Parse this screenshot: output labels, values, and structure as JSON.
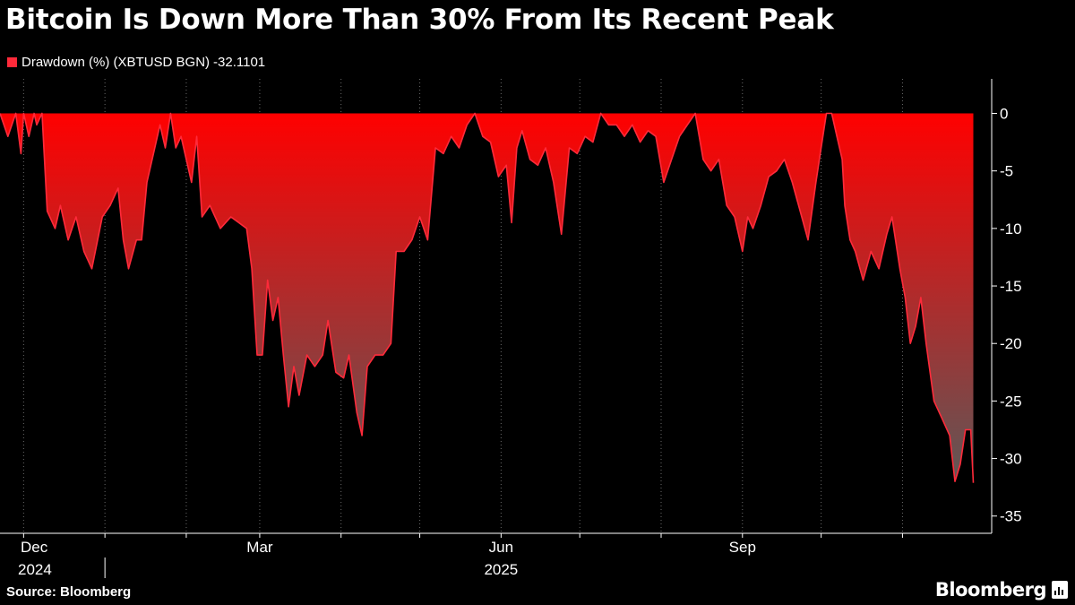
{
  "header": {
    "title": "Bitcoin Is Down More Than 30% From Its Recent Peak"
  },
  "footer": {
    "source": "Source: Bloomberg",
    "brand": "Bloomberg"
  },
  "colors": {
    "series": "#ff2a3a",
    "fill_top": "#ff0000",
    "fill_bottom": "#5a5a5a",
    "background": "#000000"
  },
  "chart_data": {
    "type": "area",
    "title": "Bitcoin Is Down More Than 30% From Its Recent Peak",
    "series": [
      {
        "name": "Drawdown (%) (XBTUSD BGN)",
        "last_value_label": "-32.1101",
        "points": [
          [
            "2024-11-22",
            0
          ],
          [
            "2024-11-25",
            -2
          ],
          [
            "2024-11-28",
            0
          ],
          [
            "2024-11-30",
            -3.5
          ],
          [
            "2024-12-01",
            0
          ],
          [
            "2024-12-03",
            -2
          ],
          [
            "2024-12-05",
            0
          ],
          [
            "2024-12-06",
            -1
          ],
          [
            "2024-12-08",
            0
          ],
          [
            "2024-12-10",
            -8.5
          ],
          [
            "2024-12-13",
            -10
          ],
          [
            "2024-12-15",
            -8
          ],
          [
            "2024-12-18",
            -11
          ],
          [
            "2024-12-21",
            -9
          ],
          [
            "2024-12-24",
            -12
          ],
          [
            "2024-12-27",
            -13.5
          ],
          [
            "2024-12-31",
            -9
          ],
          [
            "2025-01-03",
            -8
          ],
          [
            "2025-01-06",
            -6.5
          ],
          [
            "2025-01-08",
            -11
          ],
          [
            "2025-01-10",
            -13.5
          ],
          [
            "2025-01-13",
            -11
          ],
          [
            "2025-01-15",
            -11
          ],
          [
            "2025-01-17",
            -6
          ],
          [
            "2025-01-20",
            -3
          ],
          [
            "2025-01-22",
            -1
          ],
          [
            "2025-01-24",
            -3
          ],
          [
            "2025-01-26",
            0
          ],
          [
            "2025-01-28",
            -3
          ],
          [
            "2025-01-30",
            -2
          ],
          [
            "2025-02-01",
            -4
          ],
          [
            "2025-02-03",
            -6
          ],
          [
            "2025-02-05",
            -2
          ],
          [
            "2025-02-07",
            -9
          ],
          [
            "2025-02-10",
            -8
          ],
          [
            "2025-02-14",
            -10
          ],
          [
            "2025-02-18",
            -9
          ],
          [
            "2025-02-21",
            -9.5
          ],
          [
            "2025-02-24",
            -10
          ],
          [
            "2025-02-26",
            -13.5
          ],
          [
            "2025-02-28",
            -21
          ],
          [
            "2025-03-02",
            -21
          ],
          [
            "2025-03-04",
            -14.5
          ],
          [
            "2025-03-06",
            -18
          ],
          [
            "2025-03-08",
            -16
          ],
          [
            "2025-03-10",
            -21
          ],
          [
            "2025-03-12",
            -25.5
          ],
          [
            "2025-03-14",
            -22
          ],
          [
            "2025-03-16",
            -24.5
          ],
          [
            "2025-03-19",
            -21
          ],
          [
            "2025-03-22",
            -22
          ],
          [
            "2025-03-25",
            -21
          ],
          [
            "2025-03-27",
            -18
          ],
          [
            "2025-03-30",
            -22.5
          ],
          [
            "2025-04-02",
            -23
          ],
          [
            "2025-04-04",
            -21
          ],
          [
            "2025-04-07",
            -26
          ],
          [
            "2025-04-09",
            -28
          ],
          [
            "2025-04-11",
            -22
          ],
          [
            "2025-04-14",
            -21
          ],
          [
            "2025-04-17",
            -21
          ],
          [
            "2025-04-20",
            -20
          ],
          [
            "2025-04-22",
            -12
          ],
          [
            "2025-04-25",
            -12
          ],
          [
            "2025-04-28",
            -11
          ],
          [
            "2025-05-01",
            -9
          ],
          [
            "2025-05-04",
            -11
          ],
          [
            "2025-05-07",
            -3
          ],
          [
            "2025-05-10",
            -3.5
          ],
          [
            "2025-05-13",
            -2
          ],
          [
            "2025-05-16",
            -3
          ],
          [
            "2025-05-19",
            -1
          ],
          [
            "2025-05-22",
            0
          ],
          [
            "2025-05-25",
            -2
          ],
          [
            "2025-05-28",
            -2.5
          ],
          [
            "2025-05-31",
            -5.5
          ],
          [
            "2025-06-03",
            -4.5
          ],
          [
            "2025-06-05",
            -9.5
          ],
          [
            "2025-06-07",
            -3
          ],
          [
            "2025-06-09",
            -1.5
          ],
          [
            "2025-06-12",
            -4
          ],
          [
            "2025-06-15",
            -4.5
          ],
          [
            "2025-06-18",
            -3
          ],
          [
            "2025-06-21",
            -6
          ],
          [
            "2025-06-24",
            -10.5
          ],
          [
            "2025-06-27",
            -3
          ],
          [
            "2025-06-30",
            -3.5
          ],
          [
            "2025-07-03",
            -2
          ],
          [
            "2025-07-06",
            -2.5
          ],
          [
            "2025-07-09",
            0
          ],
          [
            "2025-07-12",
            -1
          ],
          [
            "2025-07-15",
            -1
          ],
          [
            "2025-07-18",
            -2
          ],
          [
            "2025-07-21",
            -1
          ],
          [
            "2025-07-24",
            -2.5
          ],
          [
            "2025-07-27",
            -1.5
          ],
          [
            "2025-07-30",
            -2
          ],
          [
            "2025-08-02",
            -6
          ],
          [
            "2025-08-05",
            -4
          ],
          [
            "2025-08-08",
            -2
          ],
          [
            "2025-08-11",
            -1
          ],
          [
            "2025-08-14",
            0
          ],
          [
            "2025-08-17",
            -4
          ],
          [
            "2025-08-20",
            -5
          ],
          [
            "2025-08-23",
            -4
          ],
          [
            "2025-08-26",
            -8
          ],
          [
            "2025-08-29",
            -9
          ],
          [
            "2025-09-01",
            -12
          ],
          [
            "2025-09-03",
            -9
          ],
          [
            "2025-09-05",
            -10
          ],
          [
            "2025-09-08",
            -8
          ],
          [
            "2025-09-11",
            -5.5
          ],
          [
            "2025-09-14",
            -5
          ],
          [
            "2025-09-17",
            -4
          ],
          [
            "2025-09-20",
            -6
          ],
          [
            "2025-09-23",
            -8.5
          ],
          [
            "2025-09-26",
            -11
          ],
          [
            "2025-09-29",
            -6
          ],
          [
            "2025-10-01",
            -3
          ],
          [
            "2025-10-03",
            0
          ],
          [
            "2025-10-05",
            0
          ],
          [
            "2025-10-07",
            -2
          ],
          [
            "2025-10-09",
            -4
          ],
          [
            "2025-10-10",
            -8
          ],
          [
            "2025-10-12",
            -11
          ],
          [
            "2025-10-14",
            -12
          ],
          [
            "2025-10-17",
            -14.5
          ],
          [
            "2025-10-20",
            -12
          ],
          [
            "2025-10-23",
            -13.5
          ],
          [
            "2025-10-26",
            -10.5
          ],
          [
            "2025-10-28",
            -9
          ],
          [
            "2025-10-31",
            -13.5
          ],
          [
            "2025-11-02",
            -16
          ],
          [
            "2025-11-04",
            -20
          ],
          [
            "2025-11-06",
            -18.5
          ],
          [
            "2025-11-08",
            -16
          ],
          [
            "2025-11-10",
            -20
          ],
          [
            "2025-11-13",
            -25
          ],
          [
            "2025-11-16",
            -26.5
          ],
          [
            "2025-11-19",
            -28
          ],
          [
            "2025-11-21",
            -32
          ],
          [
            "2025-11-23",
            -30.5
          ],
          [
            "2025-11-25",
            -27.5
          ],
          [
            "2025-11-27",
            -27.5
          ],
          [
            "2025-11-28",
            -32.1101
          ]
        ]
      }
    ],
    "xaxis": {
      "range": [
        "2024-11-22",
        "2025-12-05"
      ],
      "ticks": [
        {
          "date": "2024-12-01",
          "label": "Dec",
          "sublabel": "2024"
        },
        {
          "date": "2025-01-01",
          "label": ""
        },
        {
          "date": "2025-02-01",
          "label": ""
        },
        {
          "date": "2025-03-01",
          "label": "Mar"
        },
        {
          "date": "2025-04-01",
          "label": ""
        },
        {
          "date": "2025-05-01",
          "label": ""
        },
        {
          "date": "2025-06-01",
          "label": "Jun",
          "sublabel": "2025"
        },
        {
          "date": "2025-07-01",
          "label": ""
        },
        {
          "date": "2025-08-01",
          "label": ""
        },
        {
          "date": "2025-09-01",
          "label": "Sep"
        },
        {
          "date": "2025-10-01",
          "label": ""
        },
        {
          "date": "2025-11-01",
          "label": ""
        }
      ]
    },
    "yaxis": {
      "range": [
        -36.5,
        3
      ],
      "ticks": [
        "0",
        "-5",
        "-10",
        "-15",
        "-20",
        "-25",
        "-30",
        "-35"
      ],
      "position": "right"
    },
    "grid": "dotted vertical at month starts",
    "legend": "top-left"
  }
}
